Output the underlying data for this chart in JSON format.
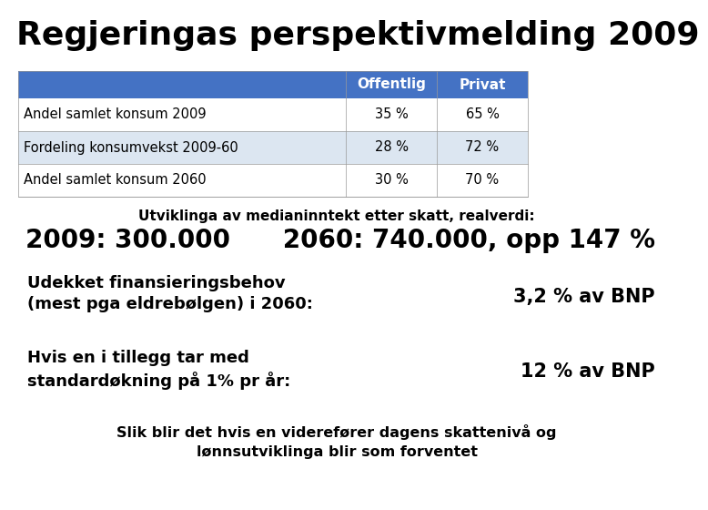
{
  "title": "Regjeringas perspektivmelding 2009",
  "title_fontsize": 26,
  "title_fontweight": "bold",
  "background_color": "#ffffff",
  "table_header_bg": "#4472C4",
  "table_header_color": "#ffffff",
  "table_row1_bg": "#ffffff",
  "table_row2_bg": "#dce6f1",
  "table_row3_bg": "#ffffff",
  "col_headers": [
    "Offentlig",
    "Privat"
  ],
  "rows": [
    [
      "Andel samlet konsum 2009",
      "35 %",
      "65 %"
    ],
    [
      "Fordeling konsumvekst 2009-60",
      "28 %",
      "72 %"
    ],
    [
      "Andel samlet konsum 2060",
      "30 %",
      "70 %"
    ]
  ],
  "median_label": "Utviklinga av medianinntekt etter skatt, realverdi:",
  "median_values": "2009: 300.000      2060: 740.000, opp 147 %",
  "block1_left": "Udekket finansieringsbehov\n(mest pga eldrebølgen) i 2060:",
  "block1_right": "3,2 % av BNP",
  "block2_left": "Hvis en i tillegg tar med\nstandardøkning på 1% pr år:",
  "block2_right": "12 % av BNP",
  "footer": "Slik blir det hvis en viderefører dagens skattenivå og\nlønnsutviklinga blir som forventet"
}
